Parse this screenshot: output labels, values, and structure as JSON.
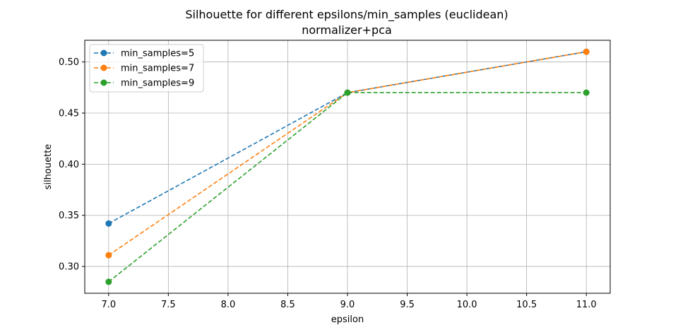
{
  "chart_data": {
    "type": "line",
    "title": "Silhouette for different epsilons/min_samples (euclidean)",
    "subtitle": "normalizer+pca",
    "xlabel": "epsilon",
    "ylabel": "silhouette",
    "x": [
      7.0,
      9.0,
      11.0
    ],
    "xlim": [
      6.8,
      11.2
    ],
    "ylim": [
      0.2738,
      0.5212
    ],
    "xticks": [
      "7.0",
      "7.5",
      "8.0",
      "8.5",
      "9.0",
      "9.5",
      "10.0",
      "10.5",
      "11.0"
    ],
    "yticks": [
      "0.30",
      "0.35",
      "0.40",
      "0.45",
      "0.50"
    ],
    "grid": true,
    "legend_position": "top-left",
    "series": [
      {
        "name": "min_samples=5",
        "color": "#1f77b4",
        "values": [
          0.342,
          0.47,
          0.51
        ]
      },
      {
        "name": "min_samples=7",
        "color": "#ff7f0e",
        "values": [
          0.311,
          0.47,
          0.51
        ]
      },
      {
        "name": "min_samples=9",
        "color": "#2ca02c",
        "values": [
          0.285,
          0.47,
          0.47
        ]
      }
    ]
  }
}
